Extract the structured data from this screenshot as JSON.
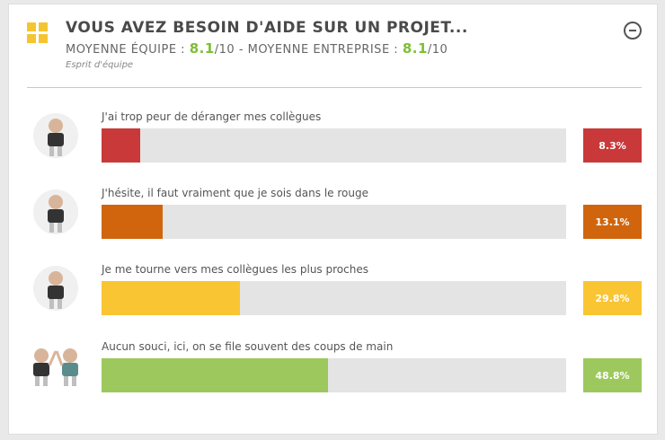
{
  "header": {
    "title": "VOUS AVEZ BESOIN D'AIDE SUR UN PROJET...",
    "team_label": "MOYENNE ÉQUIPE :",
    "team_score": "8.1",
    "team_max": "/10",
    "company_label": "- MOYENNE ENTREPRISE :",
    "company_score": "8.1",
    "company_max": "/10",
    "subtitle": "Esprit d'équipe",
    "icon": "grid-icon",
    "collapse_icon": "minus-circle-icon"
  },
  "colors": {
    "accent_green": "#7cbf33",
    "track": "#e4e4e4"
  },
  "answers": [
    {
      "label": "J'ai trop peur de déranger mes collègues",
      "percent_text": "8.3%",
      "percent": 8.3,
      "color": "#c9393a",
      "avatar": "worried-person-icon"
    },
    {
      "label": "J'hésite, il faut vraiment que je sois dans le rouge",
      "percent_text": "13.1%",
      "percent": 13.1,
      "color": "#d0650e",
      "avatar": "hesitant-person-icon"
    },
    {
      "label": "Je me tourne vers mes collègues les plus proches",
      "percent_text": "29.8%",
      "percent": 29.8,
      "color": "#f9c532",
      "avatar": "waving-person-icon"
    },
    {
      "label": "Aucun souci, ici, on se file souvent des coups de main",
      "percent_text": "48.8%",
      "percent": 48.8,
      "color": "#9dc85d",
      "avatar": "two-people-high-five-icon"
    }
  ]
}
